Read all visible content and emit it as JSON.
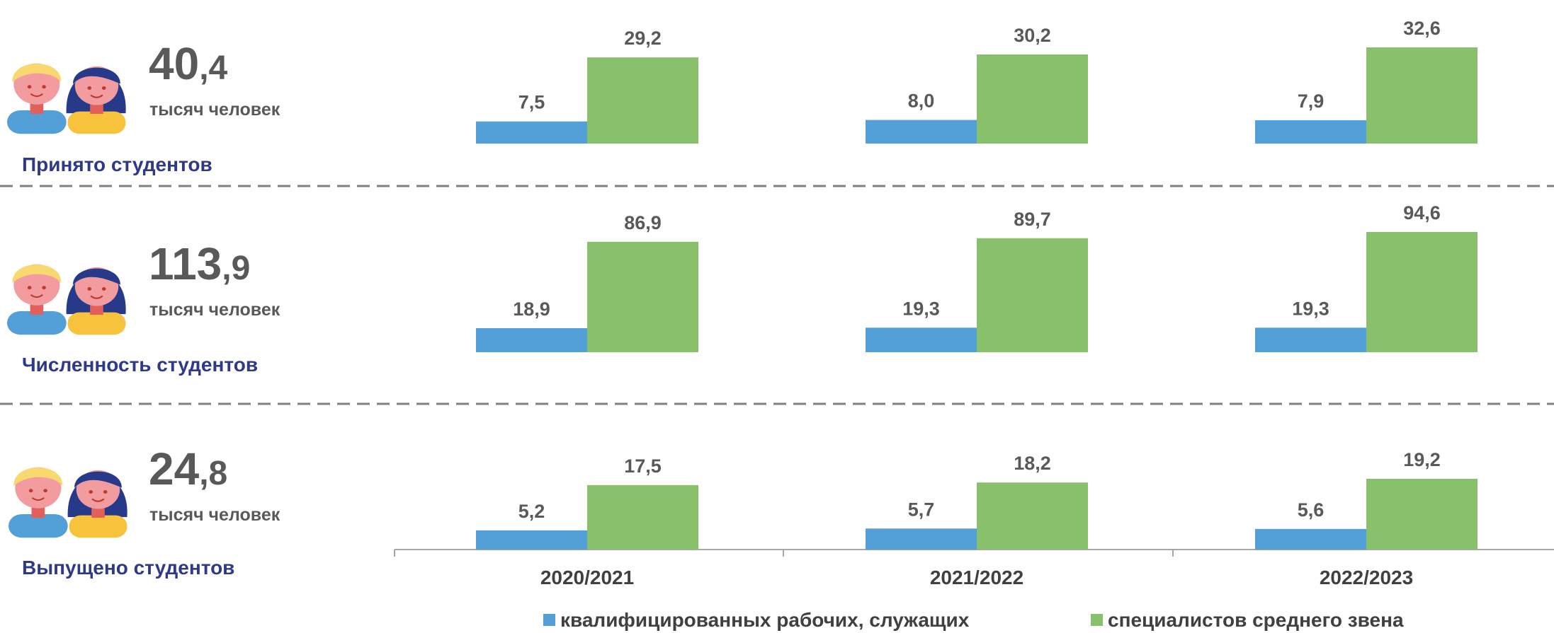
{
  "chart_data": {
    "type": "bar",
    "categories": [
      "2020/2021",
      "2021/2022",
      "2022/2023"
    ],
    "panels": [
      {
        "title": "Принято студентов",
        "total": "40,4",
        "unit": "тысяч человек"
      },
      {
        "title": "Численность студентов",
        "total": "113,9",
        "unit": "тысяч человек"
      },
      {
        "title": "Выпущено студентов",
        "total": "24,8",
        "unit": "тысяч человек"
      }
    ],
    "series": [
      {
        "name": "квалифицированных рабочих, служащих",
        "color": "#539fd7",
        "values": [
          [
            7.5,
            8.0,
            7.9
          ],
          [
            18.9,
            19.3,
            19.3
          ],
          [
            5.2,
            5.7,
            5.6
          ]
        ],
        "value_labels": [
          [
            "7,5",
            "8,0",
            "7,9"
          ],
          [
            "18,9",
            "19,3",
            "19,3"
          ],
          [
            "5,2",
            "5,7",
            "5,6"
          ]
        ]
      },
      {
        "name": "специалистов среднего звена",
        "color": "#88c06c",
        "values": [
          [
            29.2,
            30.2,
            32.6
          ],
          [
            86.9,
            89.7,
            94.6
          ],
          [
            17.5,
            18.2,
            19.2
          ]
        ],
        "value_labels": [
          [
            "29,2",
            "30,2",
            "32,6"
          ],
          [
            "86,9",
            "89,7",
            "94,6"
          ],
          [
            "17,5",
            "18,2",
            "19,2"
          ]
        ]
      }
    ]
  }
}
